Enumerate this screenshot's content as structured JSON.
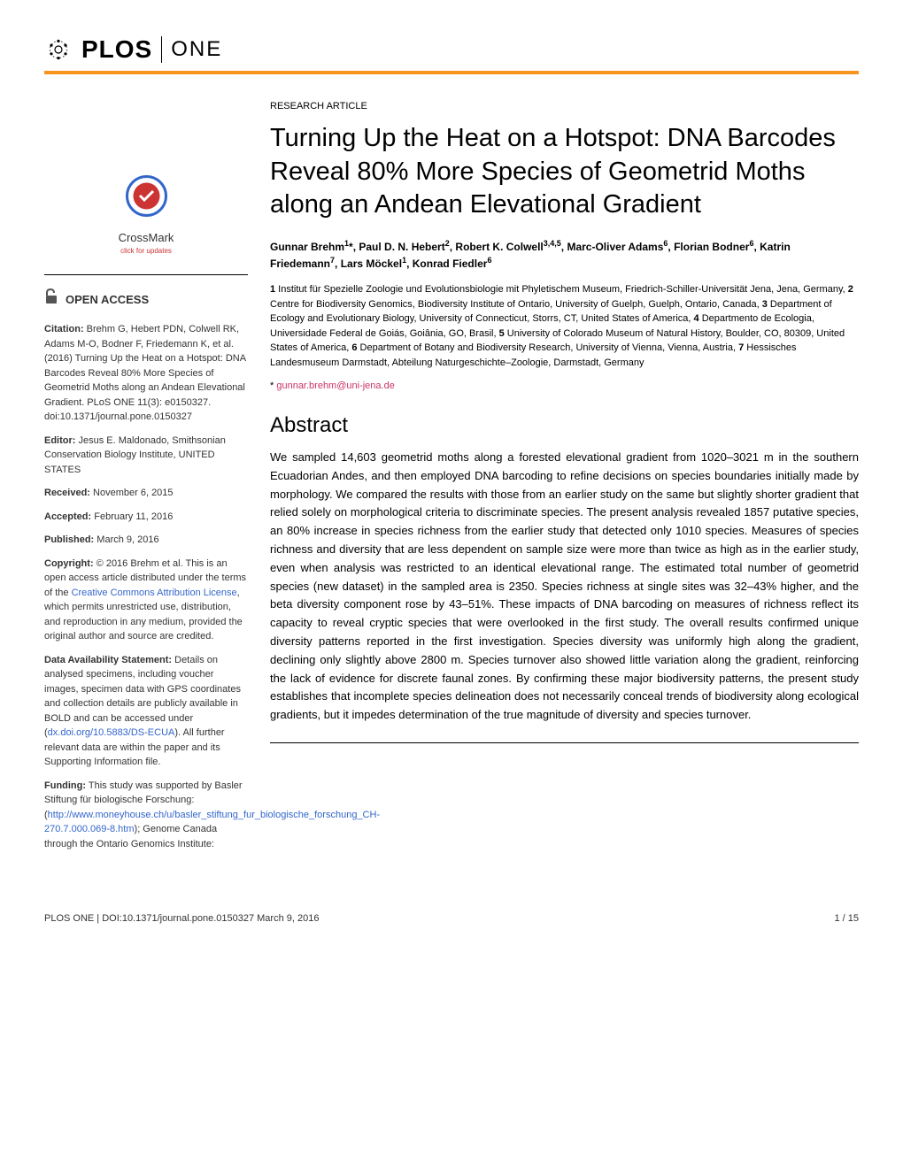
{
  "journal": {
    "name_plos": "PLOS",
    "name_one": "ONE"
  },
  "colors": {
    "orange_bar": "#f7941e",
    "link_blue": "#3366cc",
    "email_pink": "#cc3366"
  },
  "crossmark": {
    "label": "CrossMark",
    "sublabel": "click for updates"
  },
  "open_access_label": "OPEN ACCESS",
  "sidebar": {
    "citation_label": "Citation:",
    "citation_text": " Brehm G, Hebert PDN, Colwell RK, Adams M-O, Bodner F, Friedemann K, et al. (2016) Turning Up the Heat on a Hotspot: DNA Barcodes Reveal 80% More Species of Geometrid Moths along an Andean Elevational Gradient. PLoS ONE 11(3): e0150327. doi:10.1371/journal.pone.0150327",
    "editor_label": "Editor:",
    "editor_text": " Jesus E. Maldonado, Smithsonian Conservation Biology Institute, UNITED STATES",
    "received_label": "Received:",
    "received_text": " November 6, 2015",
    "accepted_label": "Accepted:",
    "accepted_text": " February 11, 2016",
    "published_label": "Published:",
    "published_text": " March 9, 2016",
    "copyright_label": "Copyright:",
    "copyright_text_1": " © 2016 Brehm et al. This is an open access article distributed under the terms of the ",
    "copyright_link": "Creative Commons Attribution License",
    "copyright_text_2": ", which permits unrestricted use, distribution, and reproduction in any medium, provided the original author and source are credited.",
    "data_label": "Data Availability Statement:",
    "data_text_1": " Details on analysed specimens, including voucher images, specimen data with GPS coordinates and collection details are publicly available in BOLD and can be accessed under (",
    "data_link": "dx.doi.org/10.5883/DS-ECUA",
    "data_text_2": "). All further relevant data are within the paper and its Supporting Information file.",
    "funding_label": "Funding:",
    "funding_text_1": " This study was supported by Basler Stiftung für biologische Forschung: (",
    "funding_link": "http://www.moneyhouse.ch/u/basler_stiftung_fur_biologische_forschung_CH-270.7.000.069-8.htm",
    "funding_text_2": "); Genome Canada through the Ontario Genomics Institute:"
  },
  "article": {
    "type": "RESEARCH ARTICLE",
    "title": "Turning Up the Heat on a Hotspot: DNA Barcodes Reveal 80% More Species of Geometrid Moths along an Andean Elevational Gradient",
    "authors_html": "Gunnar Brehm<sup>1</sup>*, Paul D. N. Hebert<sup>2</sup>, Robert K. Colwell<sup>3,4,5</sup>, Marc-Oliver Adams<sup>6</sup>, Florian Bodner<sup>6</sup>, Katrin Friedemann<sup>7</sup>, Lars Möckel<sup>1</sup>, Konrad Fiedler<sup>6</sup>",
    "affiliations_html": "<span class=\"aff-num\">1</span> Institut für Spezielle Zoologie und Evolutionsbiologie mit Phyletischem Museum, Friedrich-Schiller-Universität Jena, Jena, Germany, <span class=\"aff-num\">2</span> Centre for Biodiversity Genomics, Biodiversity Institute of Ontario, University of Guelph, Guelph, Ontario, Canada, <span class=\"aff-num\">3</span> Department of Ecology and Evolutionary Biology, University of Connecticut, Storrs, CT, United States of America, <span class=\"aff-num\">4</span> Departmento de Ecologia, Universidade Federal de Goiás, Goiânia, GO, Brasil, <span class=\"aff-num\">5</span> University of Colorado Museum of Natural History, Boulder, CO, 80309, United States of America, <span class=\"aff-num\">6</span> Department of Botany and Biodiversity Research, University of Vienna, Vienna, Austria, <span class=\"aff-num\">7</span> Hessisches Landesmuseum Darmstadt, Abteilung Naturgeschichte–Zoologie, Darmstadt, Germany",
    "corresponding_prefix": "* ",
    "corresponding_email": "gunnar.brehm@uni-jena.de",
    "abstract_title": "Abstract",
    "abstract_text": "We sampled 14,603 geometrid moths along a forested elevational gradient from 1020–3021 m in the southern Ecuadorian Andes, and then employed DNA barcoding to refine decisions on species boundaries initially made by morphology. We compared the results with those from an earlier study on the same but slightly shorter gradient that relied solely on morphological criteria to discriminate species. The present analysis revealed 1857 putative species, an 80% increase in species richness from the earlier study that detected only 1010 species. Measures of species richness and diversity that are less dependent on sample size were more than twice as high as in the earlier study, even when analysis was restricted to an identical elevational range. The estimated total number of geometrid species (new dataset) in the sampled area is 2350. Species richness at single sites was 32–43% higher, and the beta diversity component rose by 43–51%. These impacts of DNA barcoding on measures of richness reflect its capacity to reveal cryptic species that were overlooked in the first study. The overall results confirmed unique diversity patterns reported in the first investigation. Species diversity was uniformly high along the gradient, declining only slightly above 2800 m. Species turnover also showed little variation along the gradient, reinforcing the lack of evidence for discrete faunal zones. By confirming these major biodiversity patterns, the present study establishes that incomplete species delineation does not necessarily conceal trends of biodiversity along ecological gradients, but it impedes determination of the true magnitude of diversity and species turnover."
  },
  "footer": {
    "left": "PLOS ONE | DOI:10.1371/journal.pone.0150327   March 9, 2016",
    "right": "1 / 15"
  }
}
